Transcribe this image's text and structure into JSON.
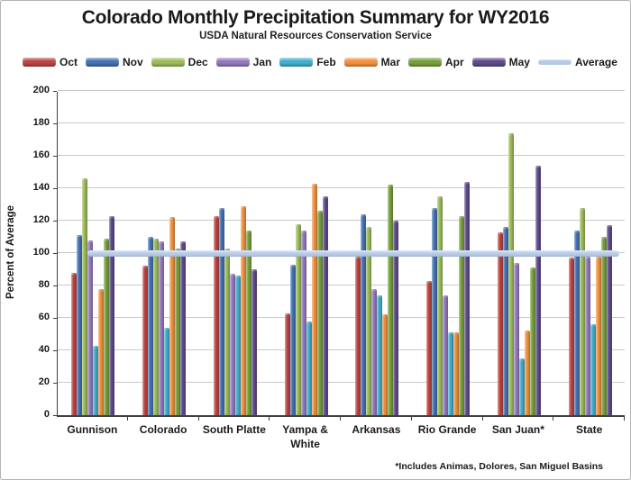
{
  "header": {
    "title": "Colorado Monthly Precipitation Summary for WY2016",
    "subtitle": "USDA Natural Resources Conservation Service"
  },
  "footnote": "*Includes Animas, Dolores, San Miguel Basins",
  "chart_data": {
    "type": "bar",
    "title": "Colorado Monthly Precipitation Summary for WY2016",
    "subtitle": "USDA Natural Resources Conservation Service",
    "xlabel": "",
    "ylabel": "Percent of Average",
    "ylim": [
      0,
      200
    ],
    "ytick_step": 20,
    "grid": true,
    "legend_position": "top",
    "categories": [
      "Gunnison",
      "Colorado",
      "South Platte",
      "Yampa & White",
      "Arkansas",
      "Rio Grande",
      "San Juan*",
      "State"
    ],
    "series": [
      {
        "name": "Oct",
        "color": "#BB4541",
        "values": [
          88,
          92,
          123,
          63,
          98,
          83,
          113,
          97
        ]
      },
      {
        "name": "Nov",
        "color": "#4472B4",
        "values": [
          111,
          110,
          128,
          93,
          124,
          128,
          116,
          114
        ]
      },
      {
        "name": "Dec",
        "color": "#9CBB59",
        "values": [
          146,
          109,
          103,
          118,
          116,
          135,
          174,
          128
        ]
      },
      {
        "name": "Jan",
        "color": "#9579BE",
        "values": [
          108,
          107,
          87,
          114,
          78,
          74,
          94,
          98
        ]
      },
      {
        "name": "Feb",
        "color": "#41AECC",
        "values": [
          43,
          54,
          86,
          58,
          74,
          51,
          35,
          56
        ]
      },
      {
        "name": "Mar",
        "color": "#F0913E",
        "values": [
          78,
          122,
          129,
          143,
          62,
          51,
          52,
          98
        ]
      },
      {
        "name": "Apr",
        "color": "#76A03C",
        "values": [
          109,
          103,
          114,
          126,
          142,
          123,
          91,
          110
        ]
      },
      {
        "name": "May",
        "color": "#5F4B8C",
        "values": [
          123,
          107,
          90,
          135,
          120,
          144,
          154,
          117
        ]
      }
    ],
    "average_line": {
      "label": "Average",
      "value": 100,
      "color": "#B3C9E6"
    }
  }
}
